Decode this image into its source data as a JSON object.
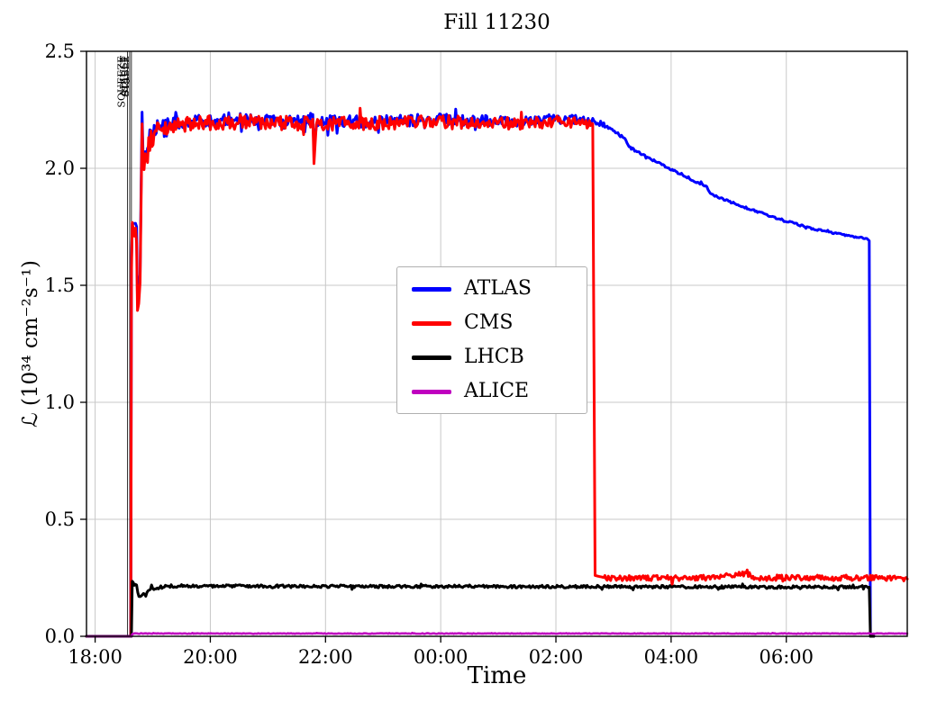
{
  "chart_data": {
    "type": "line",
    "title": "Fill 11230",
    "xlabel": "Time",
    "ylabel": "ℒ (10³⁴ cm⁻²s⁻¹)",
    "x_unit": "time of day, hours (values past midnight encoded as 24+h)",
    "xlim": [
      17.85,
      32.1
    ],
    "ylim": [
      0,
      2.5
    ],
    "grid": true,
    "legend_position": "inside center-left",
    "x_ticks": [
      {
        "value": 18,
        "label": "18:00"
      },
      {
        "value": 20,
        "label": "20:00"
      },
      {
        "value": 22,
        "label": "22:00"
      },
      {
        "value": 24,
        "label": "00:00"
      },
      {
        "value": 26,
        "label": "02:00"
      },
      {
        "value": 28,
        "label": "04:00"
      },
      {
        "value": 30,
        "label": "06:00"
      }
    ],
    "y_ticks": [
      {
        "value": 0,
        "label": "0.0"
      },
      {
        "value": 0.5,
        "label": "0.5"
      },
      {
        "value": 1,
        "label": "1.0"
      },
      {
        "value": 1.5,
        "label": "1.5"
      },
      {
        "value": 2,
        "label": "2.0"
      },
      {
        "value": 2.5,
        "label": "2.5"
      }
    ],
    "annotations": [
      {
        "t": 18.56,
        "label": "SQUEEZE"
      },
      {
        "t": 18.6,
        "label": "ADJUST"
      },
      {
        "t": 18.63,
        "label": "STABLE"
      }
    ],
    "points_format": "[time_h, luminosity_1e34, noise_amplitude]",
    "series": [
      {
        "name": "ATLAS",
        "color": "#0000ff",
        "linewidth": 3,
        "points": [
          [
            17.85,
            0,
            0
          ],
          [
            18.62,
            0,
            0
          ],
          [
            18.63,
            1.6,
            0
          ],
          [
            18.645,
            1.78,
            0.02
          ],
          [
            18.72,
            1.76,
            0.02
          ],
          [
            18.735,
            1.42,
            0.02
          ],
          [
            18.78,
            1.5,
            0.06
          ],
          [
            18.815,
            2.24,
            0
          ],
          [
            18.83,
            2.05,
            0.05
          ],
          [
            18.95,
            2.14,
            0.035
          ],
          [
            19.1,
            2.18,
            0.028
          ],
          [
            19.6,
            2.2,
            0.026
          ],
          [
            20.6,
            2.21,
            0.026
          ],
          [
            21.7,
            2.2,
            0.026
          ],
          [
            21.78,
            2.23,
            0
          ],
          [
            21.8,
            2.07,
            0
          ],
          [
            21.84,
            2.2,
            0.026
          ],
          [
            23,
            2.2,
            0.025
          ],
          [
            24,
            2.21,
            0.023
          ],
          [
            25.2,
            2.2,
            0.022
          ],
          [
            26.2,
            2.21,
            0.02
          ],
          [
            26.7,
            2.2,
            0.012
          ],
          [
            26.85,
            2.18,
            0.006
          ],
          [
            27.2,
            2.13,
            0.005
          ],
          [
            27.27,
            2.09,
            0.005
          ],
          [
            27.8,
            2.02,
            0.005
          ],
          [
            28.3,
            1.96,
            0.005
          ],
          [
            28.62,
            1.92,
            0.004
          ],
          [
            28.68,
            1.89,
            0.004
          ],
          [
            29.2,
            1.84,
            0.004
          ],
          [
            29.8,
            1.79,
            0.004
          ],
          [
            30.4,
            1.745,
            0.004
          ],
          [
            31,
            1.715,
            0.003
          ],
          [
            31.4,
            1.7,
            0
          ],
          [
            31.44,
            1.69,
            0
          ],
          [
            31.46,
            0,
            0
          ],
          [
            31.52,
            0,
            0
          ]
        ]
      },
      {
        "name": "CMS",
        "color": "#ff0000",
        "linewidth": 3,
        "points": [
          [
            17.85,
            0,
            0
          ],
          [
            18.62,
            0,
            0
          ],
          [
            18.63,
            1.55,
            0
          ],
          [
            18.645,
            1.74,
            0.03
          ],
          [
            18.72,
            1.71,
            0.03
          ],
          [
            18.735,
            1.39,
            0.03
          ],
          [
            18.78,
            1.46,
            0.07
          ],
          [
            18.815,
            2.19,
            0
          ],
          [
            18.83,
            2.02,
            0.06
          ],
          [
            18.95,
            2.11,
            0.045
          ],
          [
            19.1,
            2.16,
            0.035
          ],
          [
            19.6,
            2.19,
            0.032
          ],
          [
            20.6,
            2.2,
            0.03
          ],
          [
            21.7,
            2.19,
            0.03
          ],
          [
            21.78,
            2.21,
            0
          ],
          [
            21.8,
            2.02,
            0
          ],
          [
            21.84,
            2.19,
            0.03
          ],
          [
            23,
            2.19,
            0.028
          ],
          [
            24,
            2.2,
            0.027
          ],
          [
            25.2,
            2.19,
            0.026
          ],
          [
            26.3,
            2.2,
            0.022
          ],
          [
            26.6,
            2.19,
            0.012
          ],
          [
            26.64,
            2.19,
            0
          ],
          [
            26.68,
            0.26,
            0
          ],
          [
            26.85,
            0.25,
            0.012
          ],
          [
            28.5,
            0.248,
            0.012
          ],
          [
            29.32,
            0.27,
            0.014
          ],
          [
            29.4,
            0.25,
            0.012
          ],
          [
            31.5,
            0.25,
            0.011
          ],
          [
            32.1,
            0.245,
            0.01
          ]
        ]
      },
      {
        "name": "LHCB",
        "color": "#000000",
        "linewidth": 3,
        "points": [
          [
            17.85,
            0,
            0
          ],
          [
            18.63,
            0,
            0
          ],
          [
            18.645,
            0.235,
            0
          ],
          [
            18.68,
            0.225,
            0.01
          ],
          [
            18.72,
            0.21,
            0.01
          ],
          [
            18.76,
            0.175,
            0.008
          ],
          [
            18.88,
            0.18,
            0.008
          ],
          [
            18.98,
            0.205,
            0.007
          ],
          [
            19.3,
            0.215,
            0.006
          ],
          [
            21,
            0.214,
            0.006
          ],
          [
            24,
            0.213,
            0.006
          ],
          [
            27,
            0.212,
            0.006
          ],
          [
            30,
            0.21,
            0.006
          ],
          [
            31.4,
            0.212,
            0.004
          ],
          [
            31.44,
            0.21,
            0
          ],
          [
            31.46,
            0,
            0
          ],
          [
            31.52,
            0,
            0
          ]
        ]
      },
      {
        "name": "ALICE",
        "color": "#bf00bf",
        "linewidth": 2.5,
        "points": [
          [
            17.85,
            0,
            0
          ],
          [
            18.63,
            0,
            0
          ],
          [
            18.65,
            0.012,
            0.0012
          ],
          [
            32.1,
            0.012,
            0.0012
          ]
        ]
      }
    ]
  }
}
